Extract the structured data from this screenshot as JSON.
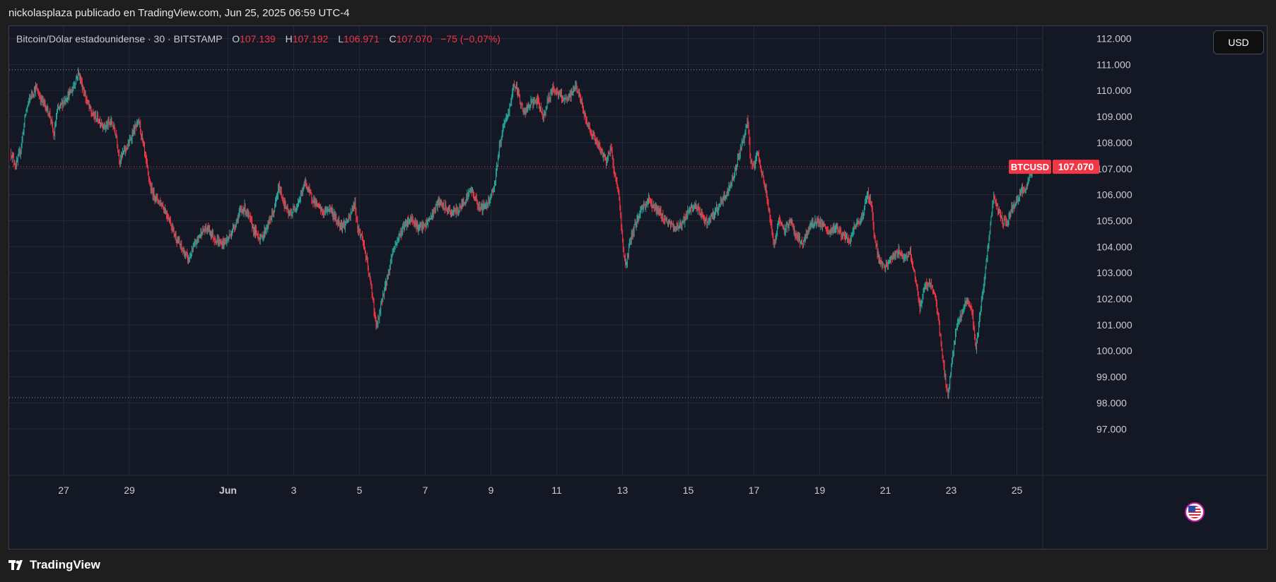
{
  "header": {
    "text": "nickolasplaza publicado en TradingView.com, Jun 25, 2025 06:59 UTC-4"
  },
  "legend": {
    "symbol": "Bitcoin/Dólar estadounidense · 30 · BITSTAMP",
    "o_label": "O",
    "o_value": "107.139",
    "h_label": "H",
    "h_value": "107.192",
    "l_label": "L",
    "l_value": "106.971",
    "c_label": "C",
    "c_value": "107.070",
    "change": "−75 (−0,07%)"
  },
  "currency_button": "USD",
  "price_tag": {
    "symbol": "BTCUSD",
    "value": "107.070"
  },
  "footer": {
    "brand": "TradingView"
  },
  "colors": {
    "up": "#26a69a",
    "down": "#f23645",
    "background": "#141824",
    "grid": "#232838",
    "last_price_line": "#f23645"
  },
  "chart_data": {
    "type": "candlestick",
    "title": "Bitcoin/Dólar estadounidense · 30 · BITSTAMP",
    "ylim": [
      96500,
      113000
    ],
    "y_ticks": [
      97000,
      98000,
      99000,
      100000,
      101000,
      102000,
      103000,
      104000,
      105000,
      106000,
      107000,
      108000,
      109000,
      110000,
      111000,
      112000
    ],
    "y_tick_labels": [
      "97.000",
      "98.000",
      "99.000",
      "100.000",
      "101.000",
      "102.000",
      "103.000",
      "104.000",
      "105.000",
      "106.000",
      "107.000",
      "108.000",
      "109.000",
      "110.000",
      "111.000",
      "112.000"
    ],
    "x_ticks": [
      {
        "label": "27",
        "day": 0
      },
      {
        "label": "29",
        "day": 2
      },
      {
        "label": "Jun",
        "day": 5,
        "bold": true
      },
      {
        "label": "3",
        "day": 7
      },
      {
        "label": "5",
        "day": 9
      },
      {
        "label": "7",
        "day": 11
      },
      {
        "label": "9",
        "day": 13
      },
      {
        "label": "11",
        "day": 15
      },
      {
        "label": "13",
        "day": 17
      },
      {
        "label": "15",
        "day": 19
      },
      {
        "label": "17",
        "day": 21
      },
      {
        "label": "19",
        "day": 23
      },
      {
        "label": "21",
        "day": 25
      },
      {
        "label": "23",
        "day": 27
      },
      {
        "label": "25",
        "day": 29
      }
    ],
    "horizontal_levels": [
      110800,
      98200
    ],
    "last_price": 107070,
    "price_path": [
      [
        -1.6,
        107600
      ],
      [
        -1.45,
        107100
      ],
      [
        -1.3,
        107800
      ],
      [
        -1.15,
        109200
      ],
      [
        -1.0,
        109800
      ],
      [
        -0.85,
        110100
      ],
      [
        -0.7,
        109700
      ],
      [
        -0.55,
        109400
      ],
      [
        -0.4,
        109000
      ],
      [
        -0.3,
        108200
      ],
      [
        -0.2,
        109200
      ],
      [
        0.0,
        109600
      ],
      [
        0.25,
        110000
      ],
      [
        0.45,
        110700
      ],
      [
        0.65,
        109800
      ],
      [
        0.85,
        109100
      ],
      [
        1.05,
        108900
      ],
      [
        1.25,
        108600
      ],
      [
        1.45,
        108800
      ],
      [
        1.6,
        108300
      ],
      [
        1.7,
        107300
      ],
      [
        1.85,
        107700
      ],
      [
        2.0,
        108000
      ],
      [
        2.1,
        108400
      ],
      [
        2.3,
        108800
      ],
      [
        2.5,
        107300
      ],
      [
        2.65,
        106200
      ],
      [
        2.8,
        105900
      ],
      [
        3.0,
        105600
      ],
      [
        3.2,
        105100
      ],
      [
        3.4,
        104400
      ],
      [
        3.6,
        103900
      ],
      [
        3.8,
        103500
      ],
      [
        4.0,
        104100
      ],
      [
        4.2,
        104600
      ],
      [
        4.4,
        104700
      ],
      [
        4.6,
        104300
      ],
      [
        4.8,
        104100
      ],
      [
        5.0,
        104300
      ],
      [
        5.2,
        104800
      ],
      [
        5.35,
        105300
      ],
      [
        5.5,
        105500
      ],
      [
        5.65,
        105100
      ],
      [
        5.8,
        104600
      ],
      [
        6.0,
        104300
      ],
      [
        6.2,
        104800
      ],
      [
        6.4,
        105400
      ],
      [
        6.55,
        106300
      ],
      [
        6.7,
        105700
      ],
      [
        6.85,
        105200
      ],
      [
        7.0,
        105400
      ],
      [
        7.2,
        105900
      ],
      [
        7.35,
        106500
      ],
      [
        7.5,
        106000
      ],
      [
        7.7,
        105600
      ],
      [
        7.9,
        105300
      ],
      [
        8.1,
        105500
      ],
      [
        8.3,
        105000
      ],
      [
        8.5,
        104800
      ],
      [
        8.7,
        105100
      ],
      [
        8.85,
        105700
      ],
      [
        8.95,
        104700
      ],
      [
        9.1,
        104300
      ],
      [
        9.25,
        103200
      ],
      [
        9.4,
        102100
      ],
      [
        9.5,
        100900
      ],
      [
        9.6,
        101300
      ],
      [
        9.7,
        102100
      ],
      [
        9.85,
        102800
      ],
      [
        10.0,
        103800
      ],
      [
        10.2,
        104400
      ],
      [
        10.4,
        104900
      ],
      [
        10.6,
        105100
      ],
      [
        10.8,
        104700
      ],
      [
        11.0,
        104800
      ],
      [
        11.2,
        105200
      ],
      [
        11.4,
        105700
      ],
      [
        11.6,
        105500
      ],
      [
        11.8,
        105300
      ],
      [
        12.0,
        105400
      ],
      [
        12.2,
        105800
      ],
      [
        12.4,
        106200
      ],
      [
        12.6,
        105600
      ],
      [
        12.75,
        105500
      ],
      [
        12.9,
        105700
      ],
      [
        13.1,
        106300
      ],
      [
        13.25,
        107800
      ],
      [
        13.4,
        108700
      ],
      [
        13.55,
        109200
      ],
      [
        13.7,
        110300
      ],
      [
        13.85,
        109800
      ],
      [
        14.0,
        109100
      ],
      [
        14.2,
        109500
      ],
      [
        14.4,
        109600
      ],
      [
        14.6,
        109000
      ],
      [
        14.75,
        109700
      ],
      [
        14.9,
        110100
      ],
      [
        15.1,
        109800
      ],
      [
        15.3,
        109600
      ],
      [
        15.45,
        109900
      ],
      [
        15.6,
        110200
      ],
      [
        15.75,
        109500
      ],
      [
        15.9,
        108800
      ],
      [
        16.1,
        108300
      ],
      [
        16.3,
        107800
      ],
      [
        16.5,
        107300
      ],
      [
        16.65,
        107800
      ],
      [
        16.75,
        106900
      ],
      [
        16.9,
        105900
      ],
      [
        17.0,
        104200
      ],
      [
        17.1,
        103200
      ],
      [
        17.25,
        104300
      ],
      [
        17.4,
        104900
      ],
      [
        17.6,
        105500
      ],
      [
        17.8,
        105800
      ],
      [
        18.0,
        105500
      ],
      [
        18.2,
        105200
      ],
      [
        18.4,
        104900
      ],
      [
        18.6,
        104700
      ],
      [
        18.8,
        104900
      ],
      [
        19.0,
        105300
      ],
      [
        19.2,
        105600
      ],
      [
        19.4,
        105200
      ],
      [
        19.6,
        104900
      ],
      [
        19.8,
        105300
      ],
      [
        20.0,
        105700
      ],
      [
        20.2,
        106100
      ],
      [
        20.4,
        106800
      ],
      [
        20.55,
        107600
      ],
      [
        20.7,
        108200
      ],
      [
        20.8,
        108900
      ],
      [
        20.9,
        107300
      ],
      [
        21.0,
        107000
      ],
      [
        21.1,
        107600
      ],
      [
        21.25,
        106800
      ],
      [
        21.4,
        105900
      ],
      [
        21.5,
        105000
      ],
      [
        21.6,
        104000
      ],
      [
        21.75,
        105000
      ],
      [
        21.9,
        104600
      ],
      [
        22.1,
        105000
      ],
      [
        22.3,
        104400
      ],
      [
        22.5,
        104100
      ],
      [
        22.7,
        104800
      ],
      [
        22.9,
        105000
      ],
      [
        23.1,
        104800
      ],
      [
        23.3,
        104500
      ],
      [
        23.5,
        104800
      ],
      [
        23.7,
        104400
      ],
      [
        23.9,
        104200
      ],
      [
        24.1,
        104800
      ],
      [
        24.3,
        105200
      ],
      [
        24.45,
        106000
      ],
      [
        24.55,
        105800
      ],
      [
        24.65,
        104600
      ],
      [
        24.8,
        103500
      ],
      [
        25.0,
        103200
      ],
      [
        25.2,
        103600
      ],
      [
        25.4,
        103800
      ],
      [
        25.6,
        103600
      ],
      [
        25.75,
        103800
      ],
      [
        25.9,
        102900
      ],
      [
        26.05,
        101600
      ],
      [
        26.2,
        102500
      ],
      [
        26.35,
        102600
      ],
      [
        26.5,
        102200
      ],
      [
        26.6,
        101400
      ],
      [
        26.7,
        100100
      ],
      [
        26.8,
        99100
      ],
      [
        26.9,
        98300
      ],
      [
        27.0,
        99300
      ],
      [
        27.1,
        100400
      ],
      [
        27.2,
        101100
      ],
      [
        27.35,
        101500
      ],
      [
        27.5,
        102100
      ],
      [
        27.65,
        101300
      ],
      [
        27.75,
        99900
      ],
      [
        27.85,
        101200
      ],
      [
        28.0,
        102600
      ],
      [
        28.1,
        103800
      ],
      [
        28.2,
        105000
      ],
      [
        28.3,
        105900
      ],
      [
        28.4,
        105500
      ],
      [
        28.55,
        105000
      ],
      [
        28.7,
        104900
      ],
      [
        28.85,
        105500
      ],
      [
        29.0,
        105700
      ],
      [
        29.15,
        106200
      ],
      [
        29.25,
        106100
      ],
      [
        29.35,
        106600
      ],
      [
        29.45,
        106900
      ],
      [
        29.5,
        107070
      ]
    ]
  }
}
